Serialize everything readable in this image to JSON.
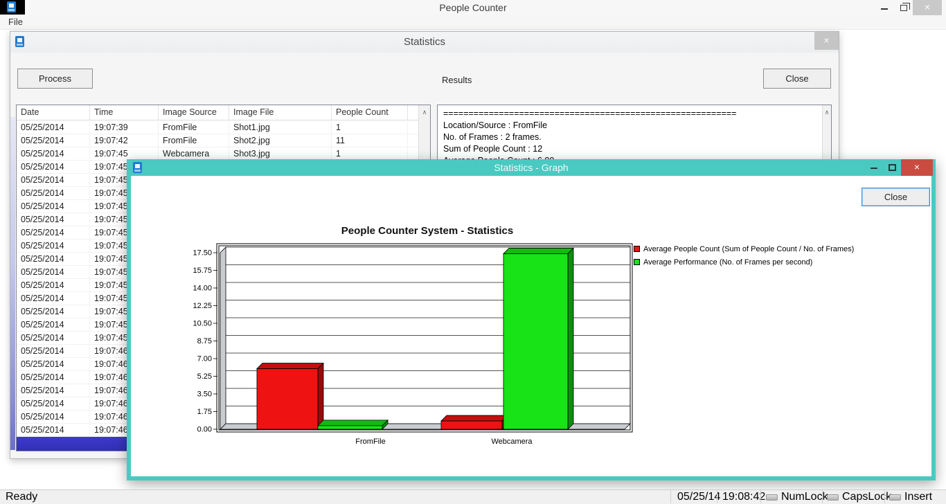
{
  "main_window": {
    "title": "People Counter",
    "menu_file": "File"
  },
  "status_bar": {
    "ready": "Ready",
    "date": "05/25/14",
    "time": "19:08:42",
    "indicators": [
      "NumLock",
      "CapsLock",
      "Insert"
    ]
  },
  "statistics_dialog": {
    "title": "Statistics",
    "process_button": "Process",
    "results_label": "Results",
    "close_button": "Close",
    "table": {
      "columns": [
        "Date",
        "Time",
        "Image Source",
        "Image File",
        "People Count"
      ],
      "rows": [
        [
          "05/25/2014",
          "19:07:39",
          "FromFile",
          "Shot1.jpg",
          "1"
        ],
        [
          "05/25/2014",
          "19:07:42",
          "FromFile",
          "Shot2.jpg",
          "11"
        ],
        [
          "05/25/2014",
          "19:07:45",
          "Webcamera",
          "Shot3.jpg",
          "1"
        ],
        [
          "05/25/2014",
          "19:07:45",
          "",
          "",
          ""
        ],
        [
          "05/25/2014",
          "19:07:45",
          "",
          "",
          ""
        ],
        [
          "05/25/2014",
          "19:07:45",
          "",
          "",
          ""
        ],
        [
          "05/25/2014",
          "19:07:45",
          "",
          "",
          ""
        ],
        [
          "05/25/2014",
          "19:07:45",
          "",
          "",
          ""
        ],
        [
          "05/25/2014",
          "19:07:45",
          "",
          "",
          ""
        ],
        [
          "05/25/2014",
          "19:07:45",
          "",
          "",
          ""
        ],
        [
          "05/25/2014",
          "19:07:45",
          "",
          "",
          ""
        ],
        [
          "05/25/2014",
          "19:07:45",
          "",
          "",
          ""
        ],
        [
          "05/25/2014",
          "19:07:45",
          "",
          "",
          ""
        ],
        [
          "05/25/2014",
          "19:07:45",
          "",
          "",
          ""
        ],
        [
          "05/25/2014",
          "19:07:45",
          "",
          "",
          ""
        ],
        [
          "05/25/2014",
          "19:07:45",
          "",
          "",
          ""
        ],
        [
          "05/25/2014",
          "19:07:45",
          "",
          "",
          ""
        ],
        [
          "05/25/2014",
          "19:07:46",
          "",
          "",
          ""
        ],
        [
          "05/25/2014",
          "19:07:46",
          "",
          "",
          ""
        ],
        [
          "05/25/2014",
          "19:07:46",
          "",
          "",
          ""
        ],
        [
          "05/25/2014",
          "19:07:46",
          "",
          "",
          ""
        ],
        [
          "05/25/2014",
          "19:07:46",
          "",
          "",
          ""
        ],
        [
          "05/25/2014",
          "19:07:46",
          "",
          "",
          ""
        ],
        [
          "05/25/2014",
          "19:07:46",
          "",
          "",
          ""
        ]
      ]
    },
    "results_lines": [
      "==========================================================",
      "Location/Source : FromFile",
      "No. of Frames : 2 frames.",
      "Sum of People Count : 12",
      "Average People Count : 6.00"
    ]
  },
  "graph_window": {
    "title": "Statistics - Graph",
    "close_button": "Close"
  },
  "chart_data": {
    "type": "bar",
    "style": "3d-column",
    "title": "People Counter System - Statistics",
    "categories": [
      "FromFile",
      "Webcamera"
    ],
    "series": [
      {
        "name": "Average People Count (Sum of People Count / No. of Frames)",
        "color": "#ef1212",
        "values": [
          6.0,
          0.82
        ]
      },
      {
        "name": "Average Performance (No. of Frames per second)",
        "color": "#17e317",
        "values": [
          0.35,
          17.4
        ]
      }
    ],
    "ylim": [
      0,
      17.5
    ],
    "yticks": [
      "0.00",
      "1.75",
      "3.50",
      "5.25",
      "7.00",
      "8.75",
      "10.50",
      "12.25",
      "14.00",
      "15.75",
      "17.50"
    ],
    "grid": true,
    "legend_position": "top-right"
  }
}
